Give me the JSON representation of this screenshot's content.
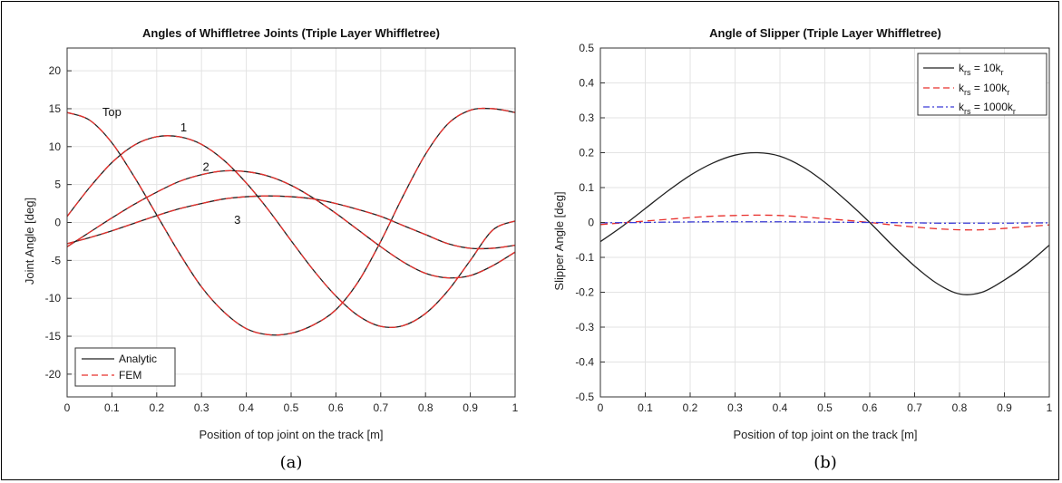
{
  "chart_data": [
    {
      "type": "line",
      "title": "Angles of Whiffletree Joints (Triple Layer Whiffletree)",
      "xlabel": "Position of top joint on the track [m]",
      "ylabel": "Joint Angle [deg]",
      "caption": "(a)",
      "xlim": [
        0,
        1
      ],
      "ylim": [
        -23,
        23
      ],
      "xticks": [
        0,
        0.1,
        0.2,
        0.3,
        0.4,
        0.5,
        0.6,
        0.7,
        0.8,
        0.9,
        1
      ],
      "yticks": [
        -20,
        -15,
        -10,
        -5,
        0,
        5,
        10,
        15,
        20
      ],
      "grid": true,
      "legend_position": "bottom-left",
      "legend": [
        "Analytic",
        "FEM"
      ],
      "annotations": [
        {
          "text": "Top",
          "x": 0.1,
          "y": 14.5
        },
        {
          "text": "1",
          "x": 0.26,
          "y": 12.5
        },
        {
          "text": "2",
          "x": 0.31,
          "y": 7.3
        },
        {
          "text": "3",
          "x": 0.38,
          "y": 0.3
        }
      ],
      "x": [
        0,
        0.05,
        0.1,
        0.15,
        0.2,
        0.25,
        0.3,
        0.35,
        0.4,
        0.45,
        0.5,
        0.55,
        0.6,
        0.65,
        0.7,
        0.75,
        0.8,
        0.85,
        0.9,
        0.95,
        1
      ],
      "series": [
        {
          "name": "Analytic",
          "curve": "Top",
          "values": [
            14.5,
            13.5,
            10.5,
            6.0,
            1.0,
            -4.0,
            -8.5,
            -11.8,
            -14.0,
            -14.8,
            -14.6,
            -13.5,
            -11.5,
            -7.8,
            -2.5,
            3.5,
            9.0,
            13.0,
            14.8,
            15.0,
            14.5
          ]
        },
        {
          "name": "Analytic",
          "curve": "1",
          "values": [
            0.8,
            4.6,
            7.9,
            10.2,
            11.3,
            11.3,
            10.3,
            8.2,
            5.2,
            1.6,
            -2.4,
            -6.3,
            -9.7,
            -12.3,
            -13.7,
            -13.6,
            -12.0,
            -9.0,
            -5.0,
            -1.0,
            0.2
          ]
        },
        {
          "name": "Analytic",
          "curve": "2",
          "values": [
            -3.2,
            -1.3,
            0.6,
            2.4,
            4.0,
            5.4,
            6.3,
            6.8,
            6.7,
            6.1,
            4.9,
            3.2,
            1.2,
            -1.0,
            -3.2,
            -5.2,
            -6.7,
            -7.3,
            -7.0,
            -5.7,
            -3.9
          ]
        },
        {
          "name": "Analytic",
          "curve": "3",
          "values": [
            -2.8,
            -2.0,
            -1.1,
            -0.1,
            0.9,
            1.8,
            2.5,
            3.1,
            3.4,
            3.5,
            3.4,
            3.1,
            2.5,
            1.7,
            0.8,
            -0.4,
            -1.6,
            -2.8,
            -3.4,
            -3.4,
            -3.0
          ]
        },
        {
          "name": "FEM",
          "curve": "Top",
          "values": [
            14.5,
            13.5,
            10.5,
            6.0,
            1.0,
            -4.0,
            -8.5,
            -11.8,
            -14.0,
            -14.8,
            -14.6,
            -13.5,
            -11.5,
            -7.8,
            -2.5,
            3.5,
            9.0,
            13.0,
            14.8,
            15.0,
            14.5
          ]
        },
        {
          "name": "FEM",
          "curve": "1",
          "values": [
            0.8,
            4.6,
            7.9,
            10.2,
            11.3,
            11.3,
            10.3,
            8.2,
            5.2,
            1.6,
            -2.4,
            -6.3,
            -9.7,
            -12.3,
            -13.7,
            -13.6,
            -12.0,
            -9.0,
            -5.0,
            -1.0,
            0.2
          ]
        },
        {
          "name": "FEM",
          "curve": "2",
          "values": [
            -3.2,
            -1.3,
            0.6,
            2.4,
            4.0,
            5.4,
            6.3,
            6.8,
            6.7,
            6.1,
            4.9,
            3.2,
            1.2,
            -1.0,
            -3.2,
            -5.2,
            -6.7,
            -7.3,
            -7.0,
            -5.7,
            -3.9
          ]
        },
        {
          "name": "FEM",
          "curve": "3",
          "values": [
            -2.8,
            -2.0,
            -1.1,
            -0.1,
            0.9,
            1.8,
            2.5,
            3.1,
            3.4,
            3.5,
            3.4,
            3.1,
            2.5,
            1.7,
            0.8,
            -0.4,
            -1.6,
            -2.8,
            -3.4,
            -3.4,
            -3.0
          ]
        }
      ]
    },
    {
      "type": "line",
      "title": "Angle of Slipper (Triple Layer Whiffletree)",
      "xlabel": "Position of top joint on the track [m]",
      "ylabel": "Slipper Angle [deg]",
      "caption": "(b)",
      "xlim": [
        0,
        1
      ],
      "ylim": [
        -0.5,
        0.5
      ],
      "xticks": [
        0,
        0.1,
        0.2,
        0.3,
        0.4,
        0.5,
        0.6,
        0.7,
        0.8,
        0.9,
        1
      ],
      "yticks": [
        -0.5,
        -0.4,
        -0.3,
        -0.2,
        -0.1,
        0,
        0.1,
        0.2,
        0.3,
        0.4,
        0.5
      ],
      "grid": true,
      "legend_position": "top-right",
      "x": [
        0,
        0.05,
        0.1,
        0.15,
        0.2,
        0.25,
        0.3,
        0.35,
        0.4,
        0.45,
        0.5,
        0.55,
        0.6,
        0.65,
        0.7,
        0.75,
        0.8,
        0.85,
        0.9,
        0.95,
        1
      ],
      "series": [
        {
          "name": "k_rs = 10k_r",
          "name_parts": [
            "k",
            "rs",
            " = 10k",
            "r"
          ],
          "values": [
            -0.055,
            -0.01,
            0.04,
            0.09,
            0.135,
            0.17,
            0.193,
            0.2,
            0.19,
            0.16,
            0.115,
            0.06,
            0.0,
            -0.065,
            -0.125,
            -0.175,
            -0.205,
            -0.2,
            -0.165,
            -0.12,
            -0.065
          ]
        },
        {
          "name": "k_rs = 100k_r",
          "name_parts": [
            "k",
            "rs",
            " = 100k",
            "r"
          ],
          "values": [
            -0.006,
            -0.001,
            0.004,
            0.009,
            0.014,
            0.018,
            0.02,
            0.021,
            0.02,
            0.016,
            0.011,
            0.006,
            0.0,
            -0.007,
            -0.013,
            -0.018,
            -0.021,
            -0.021,
            -0.017,
            -0.012,
            -0.007
          ]
        },
        {
          "name": "k_rs = 1000k_r",
          "name_parts": [
            "k",
            "rs",
            " = 1000k",
            "r"
          ],
          "values": [
            -0.001,
            -0.0005,
            0.0,
            0.001,
            0.0015,
            0.002,
            0.002,
            0.002,
            0.002,
            0.0015,
            0.001,
            0.0005,
            0.0,
            -0.0005,
            -0.001,
            -0.002,
            -0.002,
            -0.002,
            -0.002,
            -0.0015,
            -0.001
          ]
        }
      ]
    }
  ],
  "styles": {
    "analytic_color": "#222222",
    "fem_color": "#e8302c",
    "s10_color": "#222222",
    "s100_color": "#e8302c",
    "s1000_color": "#3b3bd6",
    "grid_color": "#e3e3e3"
  }
}
